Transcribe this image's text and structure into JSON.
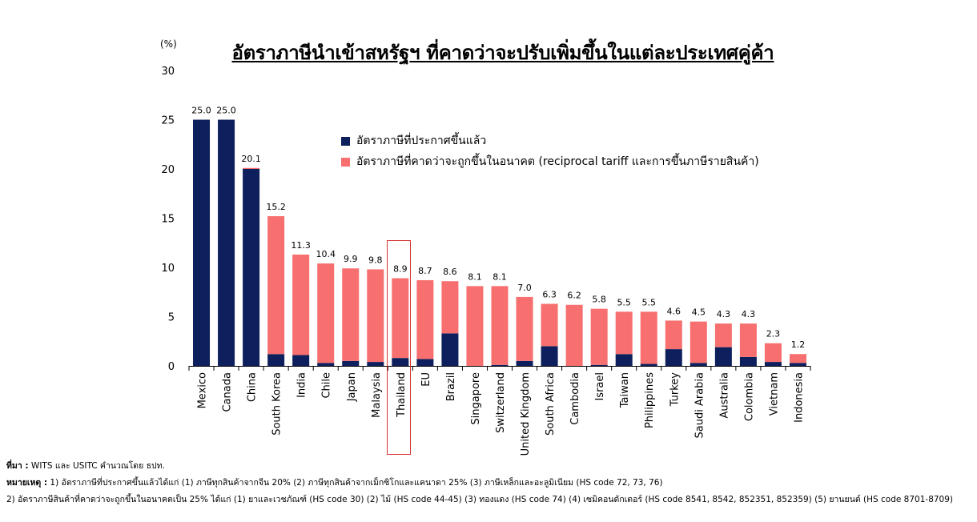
{
  "title": "อัตราภาษีนำเข้าสหรัฐฯ ที่คาดว่าจะปรับเพิ่มขึ้นในแต่ละประเทศคู่ค้า",
  "unit_label": "(%)",
  "colors": {
    "announced": "#0d1f5c",
    "expected": "#f76f6f",
    "highlight": "#d62f2f"
  },
  "legend": {
    "announced": "อัตราภาษีที่ประกาศขึ้นแล้ว",
    "expected": "อัตราภาษีที่คาดว่าจะถูกขึ้นในอนาคต (reciprocal tariff และการขึ้นภาษีรายสินค้า)"
  },
  "notes": {
    "source_label": "ที่มา :",
    "source_text": " WITS และ USITC คำนวณโดย ธปท.",
    "note_label": "หมายเหตุ :",
    "note_line1": " 1) อัตราภาษีที่ประกาศขึ้นแล้วได้แก่ (1) ภาษีทุกสินค้าจากจีน 20% (2) ภาษีทุกสินค้าจากเม็กซิโกและแคนาดา 25% (3) ภาษีเหล็กและอะลูมิเนียม (HS code 72, 73, 76)",
    "note_line2": "2) อัตราภาษีสินค้าที่คาดว่าจะถูกขึ้นในอนาคตเป็น 25%  ได้แก่ (1) ยาและเวชภัณฑ์ (HS code 30) (2) ไม้ (HS code 44-45) (3) ทองแดง (HS code 74) (4) เซมิคอนดักเตอร์ (HS code 8541, 8542, 852351, 852359) (5) ยานยนต์ (HS code 8701-8709)"
  },
  "chart_data": {
    "type": "bar",
    "stacked": true,
    "ylim": [
      0,
      30
    ],
    "yticks": [
      0,
      5,
      10,
      15,
      20,
      25,
      30
    ],
    "grid": false,
    "legend_position": "top-center",
    "highlighted_category": "Thailand",
    "categories": [
      "Mexico",
      "Canada",
      "China",
      "South Korea",
      "India",
      "Chile",
      "Japan",
      "Malaysia",
      "Thailand",
      "EU",
      "Brazil",
      "Singapore",
      "Switzerland",
      "United Kingdom",
      "South Africa",
      "Cambodia",
      "Israel",
      "Taiwan",
      "Philippines",
      "Turkey",
      "Saudi Arabia",
      "Australia",
      "Colombia",
      "Vietnam",
      "Indonesia"
    ],
    "totals": [
      "25.0",
      "25.0",
      "20.1",
      "15.2",
      "11.3",
      "10.4",
      "9.9",
      "9.8",
      "8.9",
      "8.7",
      "8.6",
      "8.1",
      "8.1",
      "7.0",
      "6.3",
      "6.2",
      "5.8",
      "5.5",
      "5.5",
      "4.6",
      "4.5",
      "4.3",
      "4.3",
      "2.3",
      "1.2"
    ],
    "series": [
      {
        "name": "อัตราภาษีที่ประกาศขึ้นแล้ว",
        "values": [
          25.0,
          25.0,
          20.0,
          1.2,
          1.1,
          0.3,
          0.5,
          0.4,
          0.8,
          0.7,
          3.3,
          0.0,
          0.1,
          0.5,
          2.0,
          0.0,
          0.1,
          1.2,
          0.2,
          1.7,
          0.3,
          1.9,
          0.9,
          0.4,
          0.3
        ]
      },
      {
        "name": "อัตราภาษีที่คาดว่าจะถูกขึ้นในอนาคต (reciprocal tariff และการขึ้นภาษีรายสินค้า)",
        "values": [
          0.0,
          0.0,
          0.1,
          14.0,
          10.2,
          10.1,
          9.4,
          9.4,
          8.1,
          8.0,
          5.3,
          8.1,
          8.0,
          6.5,
          4.3,
          6.2,
          5.7,
          4.3,
          5.3,
          2.9,
          4.2,
          2.4,
          3.4,
          1.9,
          0.9
        ]
      }
    ]
  }
}
